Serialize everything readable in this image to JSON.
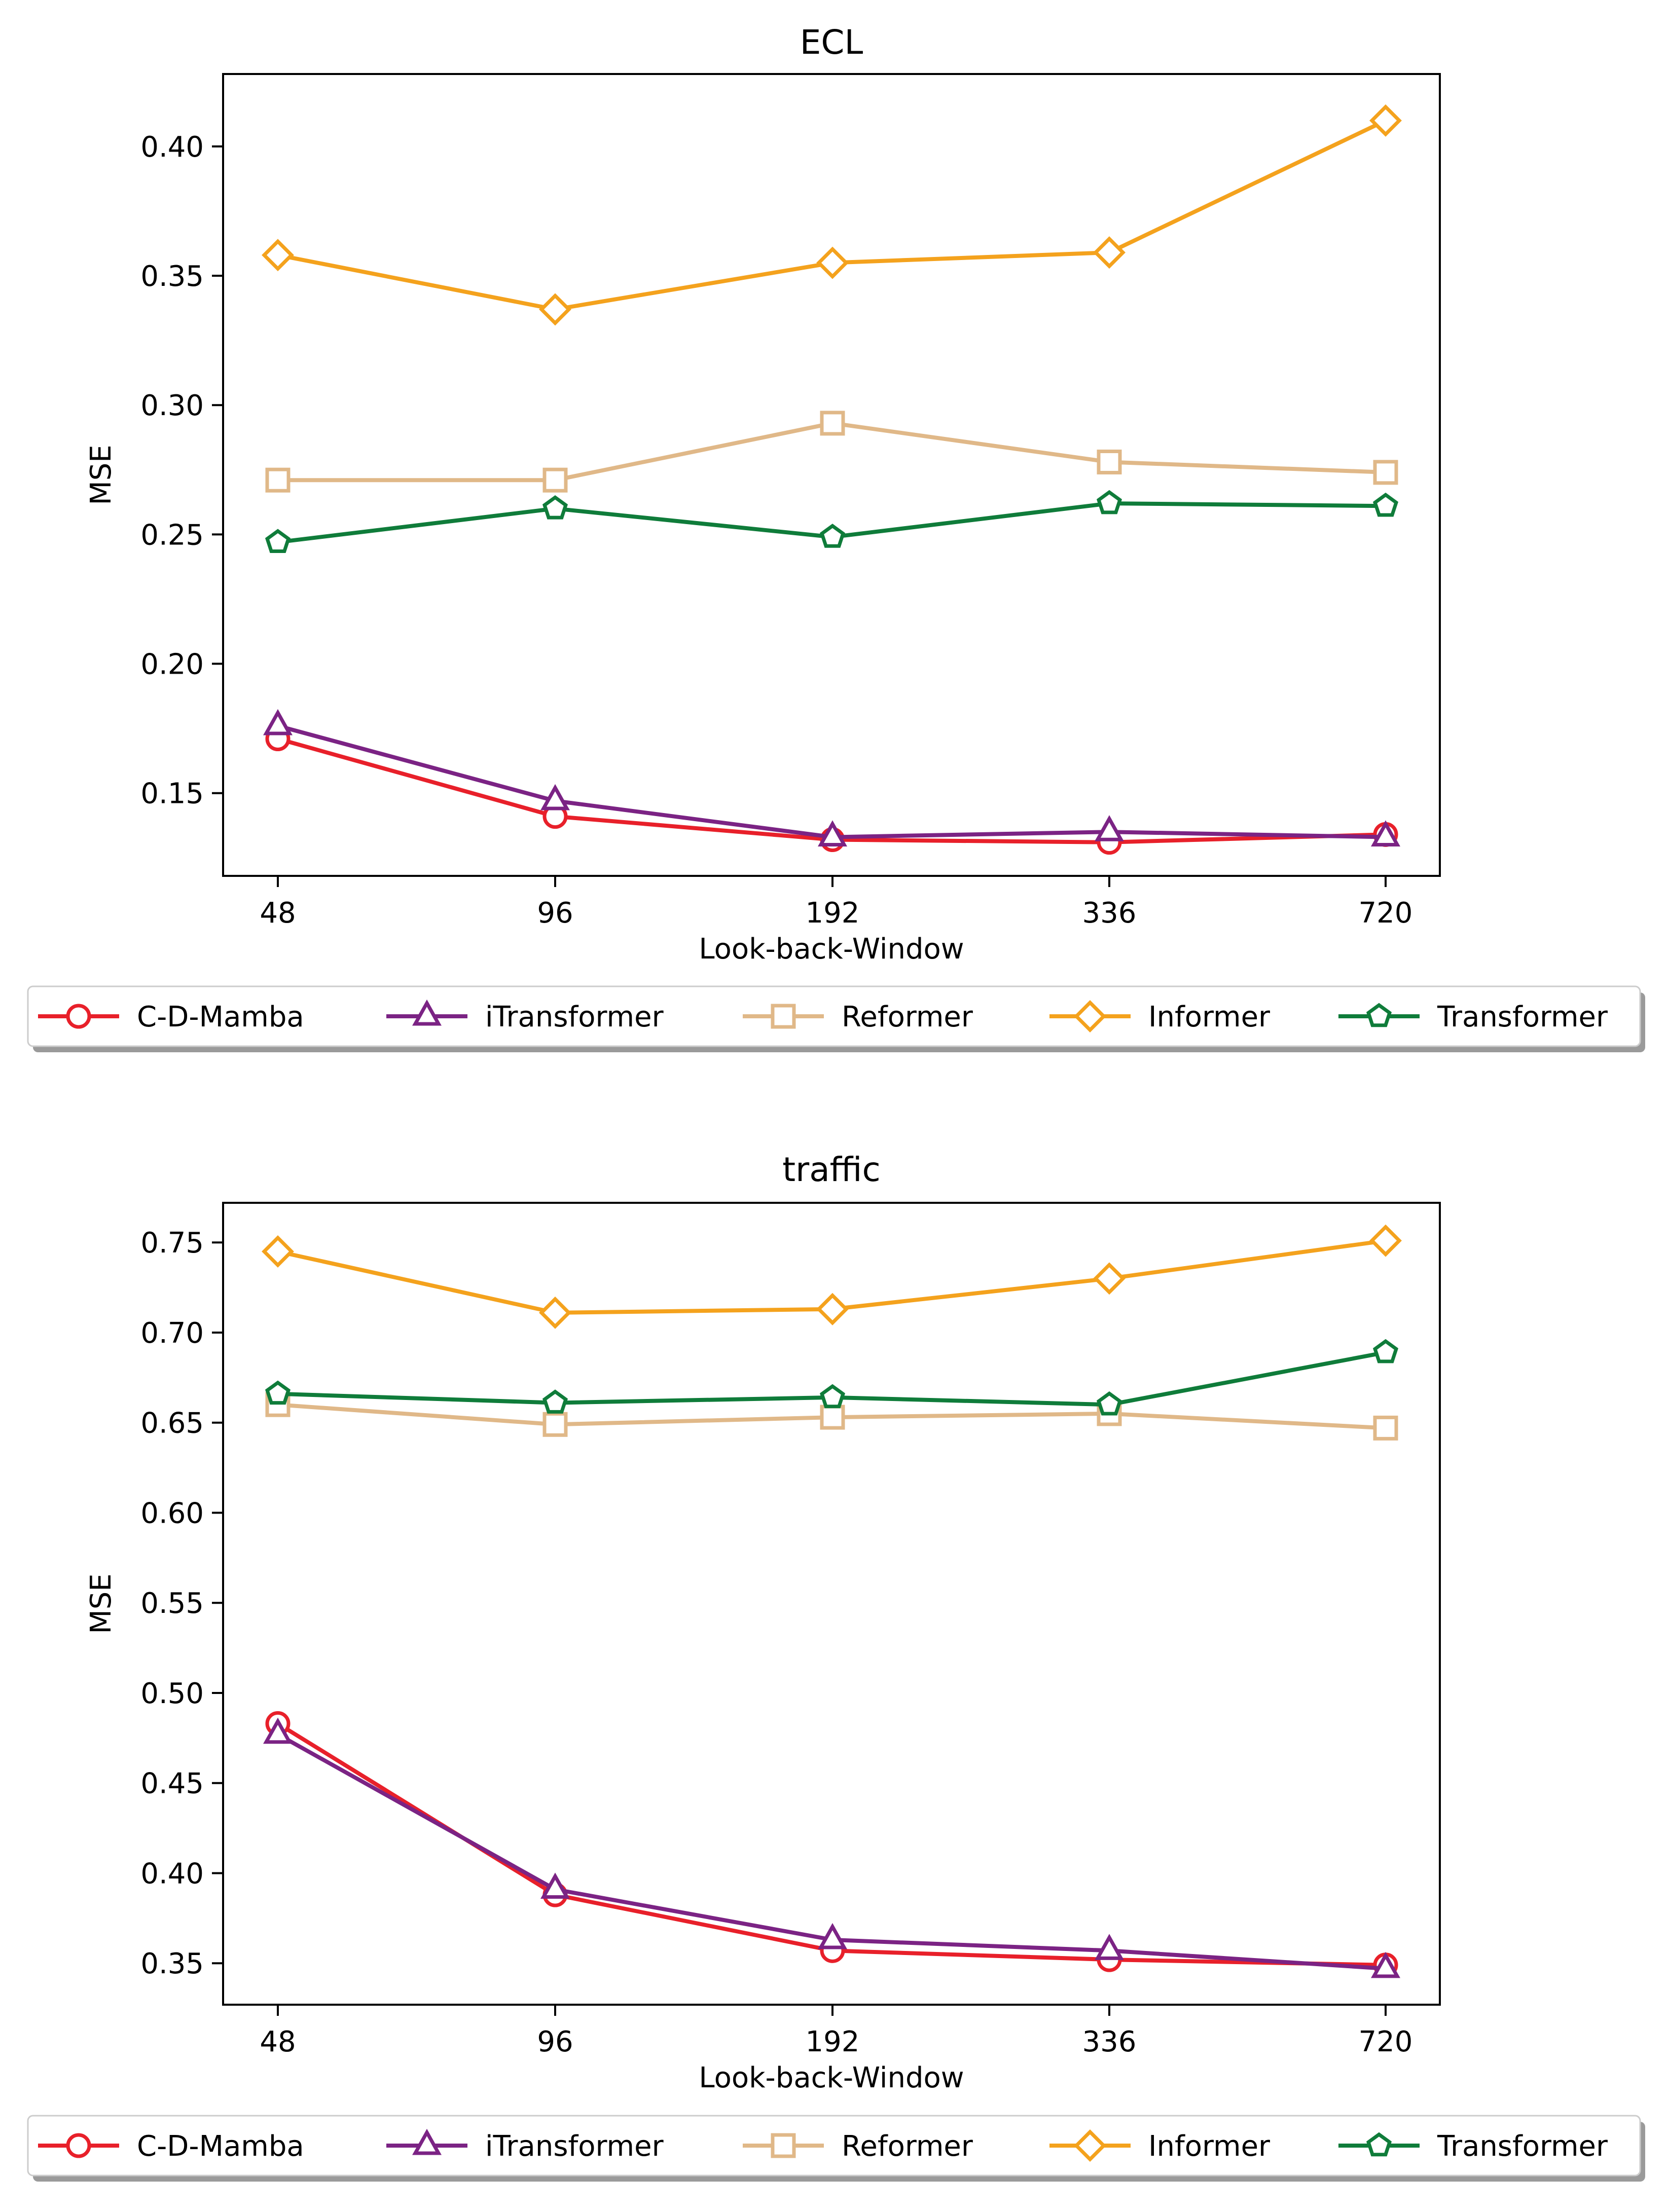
{
  "chart_data": [
    {
      "type": "line",
      "title": "ECL",
      "xlabel": "Look-back-Window",
      "ylabel": "MSE",
      "categories": [
        "48",
        "96",
        "192",
        "336",
        "720"
      ],
      "ylim": [
        0.118,
        0.428
      ],
      "yticks": [
        "0.15",
        "0.20",
        "0.25",
        "0.30",
        "0.35",
        "0.40"
      ],
      "yticks_values": [
        0.15,
        0.2,
        0.25,
        0.3,
        0.35,
        0.4
      ],
      "grid": false,
      "legend_placement": "below",
      "series": [
        {
          "name": "C-D-Mamba",
          "color": "#e8202a",
          "marker": "circle",
          "values": [
            0.171,
            0.141,
            0.132,
            0.131,
            0.134
          ]
        },
        {
          "name": "iTransformer",
          "color": "#7b2384",
          "marker": "triangle",
          "values": [
            0.176,
            0.147,
            0.133,
            0.135,
            0.133
          ]
        },
        {
          "name": "Reformer",
          "color": "#e0b888",
          "marker": "square",
          "values": [
            0.271,
            0.271,
            0.293,
            0.278,
            0.274
          ]
        },
        {
          "name": "Informer",
          "color": "#f4a21d",
          "marker": "diamond",
          "values": [
            0.358,
            0.337,
            0.355,
            0.359,
            0.41
          ]
        },
        {
          "name": "Transformer",
          "color": "#0f7c3a",
          "marker": "pentagon",
          "values": [
            0.247,
            0.26,
            0.249,
            0.262,
            0.261
          ]
        }
      ]
    },
    {
      "type": "line",
      "title": "traffic",
      "xlabel": "Look-back-Window",
      "ylabel": "MSE",
      "categories": [
        "48",
        "96",
        "192",
        "336",
        "720"
      ],
      "ylim": [
        0.327,
        0.772
      ],
      "yticks": [
        "0.35",
        "0.40",
        "0.45",
        "0.50",
        "0.55",
        "0.60",
        "0.65",
        "0.70",
        "0.75"
      ],
      "yticks_values": [
        0.35,
        0.4,
        0.45,
        0.5,
        0.55,
        0.6,
        0.65,
        0.7,
        0.75
      ],
      "grid": false,
      "legend_placement": "below",
      "series": [
        {
          "name": "C-D-Mamba",
          "color": "#e8202a",
          "marker": "circle",
          "values": [
            0.483,
            0.388,
            0.357,
            0.352,
            0.349
          ]
        },
        {
          "name": "iTransformer",
          "color": "#7b2384",
          "marker": "triangle",
          "values": [
            0.477,
            0.391,
            0.363,
            0.357,
            0.347
          ]
        },
        {
          "name": "Reformer",
          "color": "#e0b888",
          "marker": "square",
          "values": [
            0.66,
            0.649,
            0.653,
            0.655,
            0.647
          ]
        },
        {
          "name": "Informer",
          "color": "#f4a21d",
          "marker": "diamond",
          "values": [
            0.745,
            0.711,
            0.713,
            0.73,
            0.751
          ]
        },
        {
          "name": "Transformer",
          "color": "#0f7c3a",
          "marker": "pentagon",
          "values": [
            0.666,
            0.661,
            0.664,
            0.66,
            0.689
          ]
        }
      ]
    }
  ]
}
